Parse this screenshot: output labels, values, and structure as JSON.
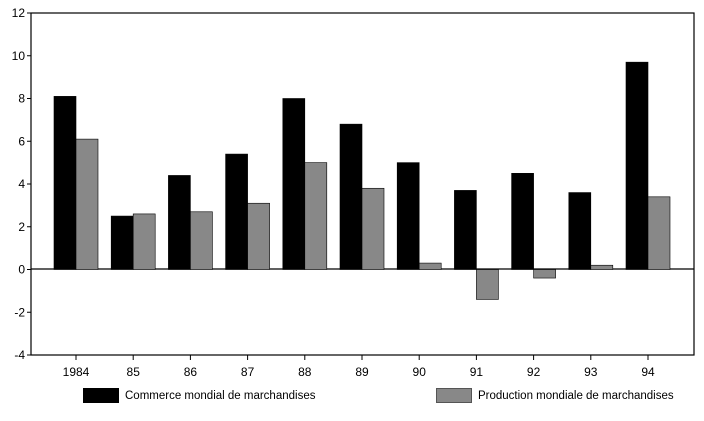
{
  "chart_data": {
    "type": "bar",
    "categories": [
      "1984",
      "85",
      "86",
      "87",
      "88",
      "89",
      "90",
      "91",
      "92",
      "93",
      "94"
    ],
    "series": [
      {
        "name": "Commerce mondial de marchandises",
        "color": "#000000",
        "values": [
          8.1,
          2.5,
          4.4,
          5.4,
          8.0,
          6.8,
          5.0,
          3.7,
          4.5,
          3.6,
          9.7
        ]
      },
      {
        "name": "Production mondiale de marchandises",
        "color": "#888888",
        "values": [
          6.1,
          2.6,
          2.7,
          3.1,
          5.0,
          3.8,
          0.3,
          -1.4,
          -0.4,
          0.2,
          3.4
        ]
      }
    ],
    "ylim": [
      -4,
      12
    ],
    "yticks": [
      "-4",
      "-2",
      "0",
      "2",
      "4",
      "6",
      "8",
      "10",
      "12"
    ],
    "legend_position": "bottom",
    "grid": false
  }
}
